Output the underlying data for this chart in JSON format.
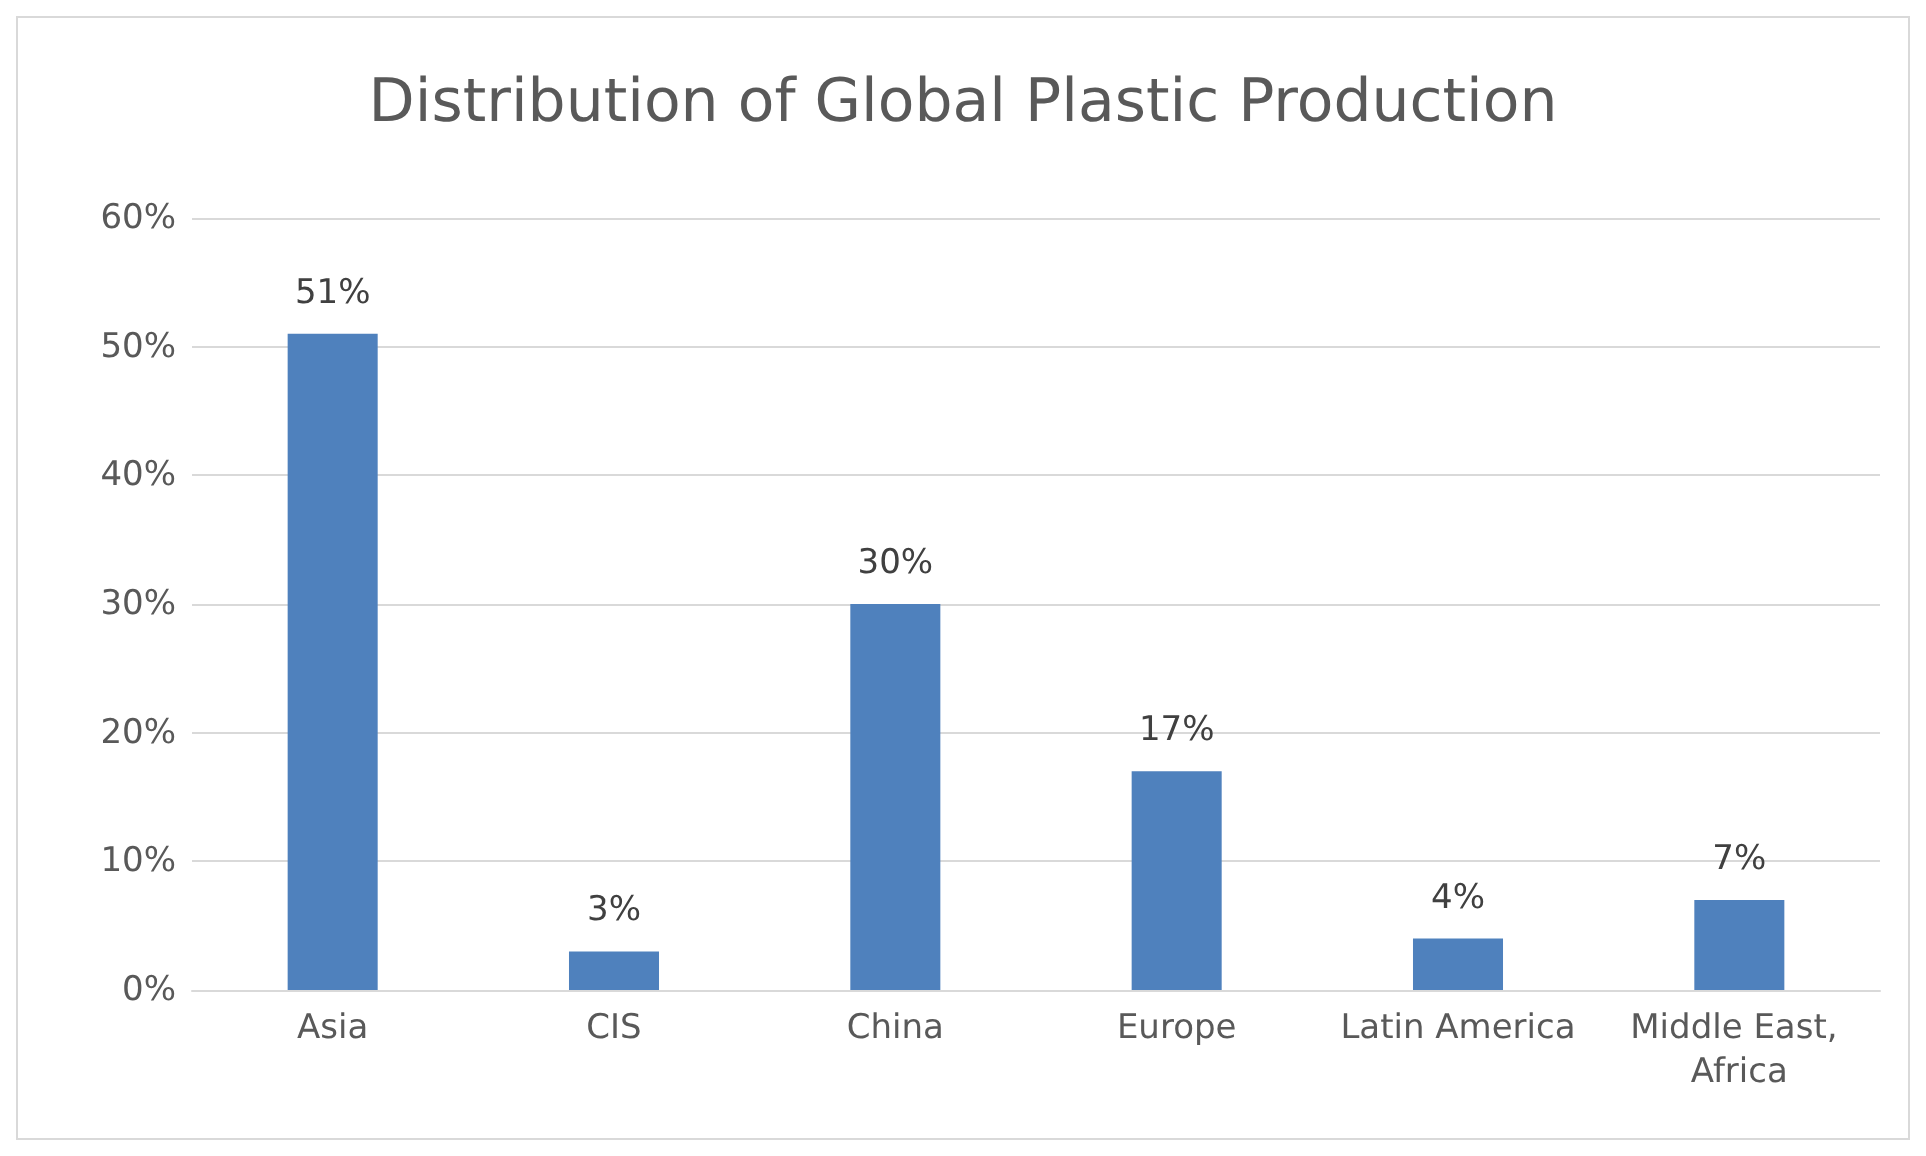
{
  "chart_data": {
    "type": "bar",
    "title": "Distribution of Global Plastic Production",
    "categories": [
      "Asia",
      "CIS",
      "China",
      "Europe",
      "Latin America",
      "Middle East, Africa"
    ],
    "values": [
      51,
      3,
      30,
      17,
      4,
      7
    ],
    "value_labels": [
      "51%",
      "3%",
      "30%",
      "17%",
      "4%",
      "7%"
    ],
    "color": "#4f81bd",
    "ylim": [
      0,
      60
    ],
    "yticks": [
      {
        "value": 0,
        "label": "0%"
      },
      {
        "value": 10,
        "label": "10%"
      },
      {
        "value": 20,
        "label": "20%"
      },
      {
        "value": 30,
        "label": "30%"
      },
      {
        "value": 40,
        "label": "40%"
      },
      {
        "value": 50,
        "label": "50%"
      },
      {
        "value": 60,
        "label": "60%"
      }
    ],
    "grid": true
  }
}
